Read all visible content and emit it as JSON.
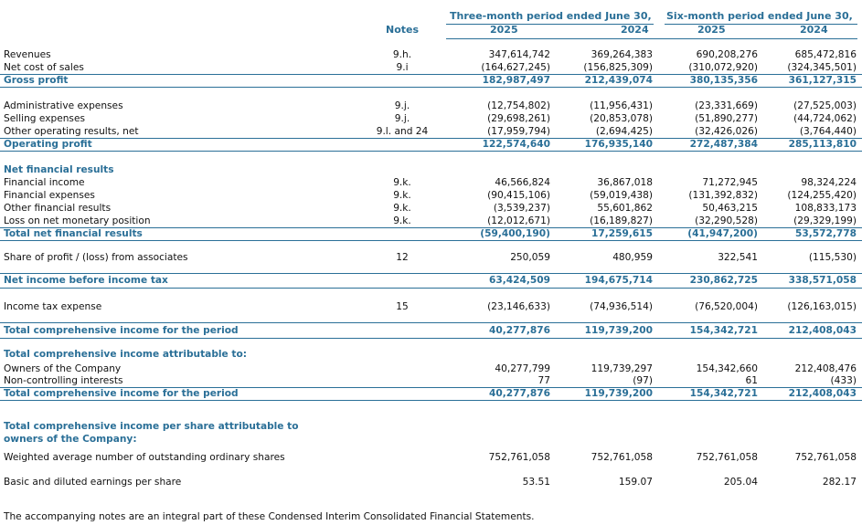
{
  "header": {
    "notes": "Notes",
    "three_month": "Three-month period ended June 30,",
    "six_month": "Six-month period ended June 30,",
    "years": [
      "2025",
      "2024",
      "2025",
      "2024"
    ]
  },
  "rows": {
    "revenues": {
      "label": "Revenues",
      "notes": "9.h.",
      "v": [
        "347,614,742",
        "369,264,383",
        "690,208,276",
        "685,472,816"
      ]
    },
    "net_cost": {
      "label": "Net cost of sales",
      "notes": "9.i",
      "v": [
        "(164,627,245)",
        "(156,825,309)",
        "(310,072,920)",
        "(324,345,501)"
      ]
    },
    "gross_profit": {
      "label": "Gross profit",
      "notes": "",
      "v": [
        "182,987,497",
        "212,439,074",
        "380,135,356",
        "361,127,315"
      ]
    },
    "admin": {
      "label": "Administrative expenses",
      "notes": "9.j.",
      "v": [
        "(12,754,802)",
        "(11,956,431)",
        "(23,331,669)",
        "(27,525,003)"
      ]
    },
    "selling": {
      "label": "Selling expenses",
      "notes": "9.j.",
      "v": [
        "(29,698,261)",
        "(20,853,078)",
        "(51,890,277)",
        "(44,724,062)"
      ]
    },
    "other_op": {
      "label": "Other operating results, net",
      "notes": "9.l. and 24",
      "v": [
        "(17,959,794)",
        "(2,694,425)",
        "(32,426,026)",
        "(3,764,440)"
      ]
    },
    "op_profit": {
      "label": "Operating profit",
      "notes": "",
      "v": [
        "122,574,640",
        "176,935,140",
        "272,487,384",
        "285,113,810"
      ]
    },
    "nfr_head": {
      "label": "Net financial results"
    },
    "fin_income": {
      "label": "Financial income",
      "notes": "9.k.",
      "v": [
        "46,566,824",
        "36,867,018",
        "71,272,945",
        "98,324,224"
      ]
    },
    "fin_exp": {
      "label": "Financial expenses",
      "notes": "9.k.",
      "v": [
        "(90,415,106)",
        "(59,019,438)",
        "(131,392,832)",
        "(124,255,420)"
      ]
    },
    "other_fin": {
      "label": "Other financial results",
      "notes": "9.k.",
      "v": [
        "(3,539,237)",
        "55,601,862",
        "50,463,215",
        "108,833,173"
      ]
    },
    "loss_monetary": {
      "label": "Loss on net monetary position",
      "notes": "9.k.",
      "v": [
        "(12,012,671)",
        "(16,189,827)",
        "(32,290,528)",
        "(29,329,199)"
      ]
    },
    "total_nfr": {
      "label": "Total net financial results",
      "notes": "",
      "v": [
        "(59,400,190)",
        "17,259,615",
        "(41,947,200)",
        "53,572,778"
      ]
    },
    "share_assoc": {
      "label": "Share of profit / (loss) from associates",
      "notes": "12",
      "v": [
        "250,059",
        "480,959",
        "322,541",
        "(115,530)"
      ]
    },
    "net_before_tax": {
      "label": "Net income before income tax",
      "notes": "",
      "v": [
        "63,424,509",
        "194,675,714",
        "230,862,725",
        "338,571,058"
      ]
    },
    "income_tax": {
      "label": "Income tax expense",
      "notes": "15",
      "v": [
        "(23,146,633)",
        "(74,936,514)",
        "(76,520,004)",
        "(126,163,015)"
      ]
    },
    "tci1": {
      "label": "Total comprehensive income for the period",
      "notes": "",
      "v": [
        "40,277,876",
        "119,739,200",
        "154,342,721",
        "212,408,043"
      ]
    },
    "attr_head": {
      "label": "Total comprehensive income attributable to:"
    },
    "owners": {
      "label": "Owners of the Company",
      "notes": "",
      "v": [
        "40,277,799",
        "119,739,297",
        "154,342,660",
        "212,408,476"
      ]
    },
    "nci": {
      "label": "Non-controlling interests",
      "notes": "",
      "v": [
        "77",
        "(97)",
        "61",
        "(433)"
      ]
    },
    "tci2": {
      "label": "Total comprehensive income for the period",
      "notes": "",
      "v": [
        "40,277,876",
        "119,739,200",
        "154,342,721",
        "212,408,043"
      ]
    },
    "per_share_head": {
      "line1": "Total comprehensive income per share attributable to",
      "line2": "owners of the Company:"
    },
    "wavg": {
      "label": "Weighted average number of outstanding ordinary shares",
      "notes": "",
      "v": [
        "752,761,058",
        "752,761,058",
        "752,761,058",
        "752,761,058"
      ]
    },
    "eps": {
      "label": "Basic and diluted earnings per share",
      "notes": "",
      "v": [
        "53.51",
        "159.07",
        "205.04",
        "282.17"
      ]
    }
  },
  "footer": "The accompanying notes are an integral part of these Condensed Interim Consolidated Financial Statements."
}
